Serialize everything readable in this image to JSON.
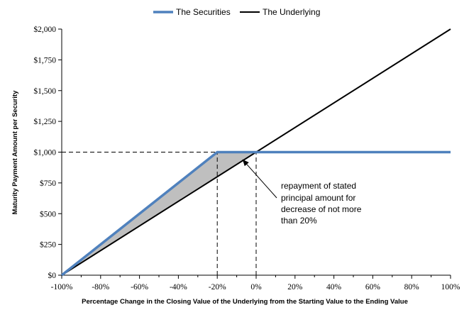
{
  "chart_data": {
    "type": "line",
    "title": "",
    "xlabel": "Percentage Change in the Closing Value of the Underlying from the Starting Value to the Ending Value",
    "ylabel": "Maturity Payment Amount per Security",
    "xlim": [
      -100,
      100
    ],
    "ylim": [
      0,
      2000
    ],
    "x_ticks": [
      -100,
      -80,
      -60,
      -40,
      -20,
      0,
      20,
      40,
      60,
      80,
      100
    ],
    "x_tick_labels": [
      "-100%",
      "-80%",
      "-60%",
      "-40%",
      "-20%",
      "0%",
      "20%",
      "40%",
      "60%",
      "80%",
      "100%"
    ],
    "y_ticks": [
      0,
      250,
      500,
      750,
      1000,
      1250,
      1500,
      1750,
      2000
    ],
    "y_tick_labels": [
      "$0",
      "$250",
      "$500",
      "$750",
      "$1,000",
      "$1,250",
      "$1,500",
      "$1,750",
      "$2,000"
    ],
    "legend_position": "top-center",
    "series": [
      {
        "name": "The Securities",
        "color": "#4f81bd",
        "x": [
          -100,
          -20,
          100
        ],
        "y": [
          0,
          1000,
          1000
        ]
      },
      {
        "name": "The Underlying",
        "color": "#000000",
        "x": [
          -100,
          100
        ],
        "y": [
          0,
          2000
        ]
      }
    ],
    "shaded_region": {
      "color": "#bfbfbf",
      "x": [
        -100,
        -20,
        0
      ],
      "upper": [
        0,
        1000,
        1000
      ],
      "lower": [
        0,
        800,
        1000
      ]
    },
    "reference_lines": [
      {
        "type": "horizontal",
        "y": 1000,
        "x_from": -100,
        "x_to": 0,
        "style": "dashed"
      },
      {
        "type": "vertical",
        "x": -20,
        "y_from": 0,
        "y_to": 1000,
        "style": "dashed"
      },
      {
        "type": "vertical",
        "x": 0,
        "y_from": 0,
        "y_to": 1000,
        "style": "dashed"
      }
    ],
    "annotation": {
      "lines": [
        "repayment of stated",
        "principal amount for",
        "decrease of not more",
        "than 20%"
      ],
      "arrow_target": {
        "x": -7,
        "y": 940
      }
    }
  }
}
